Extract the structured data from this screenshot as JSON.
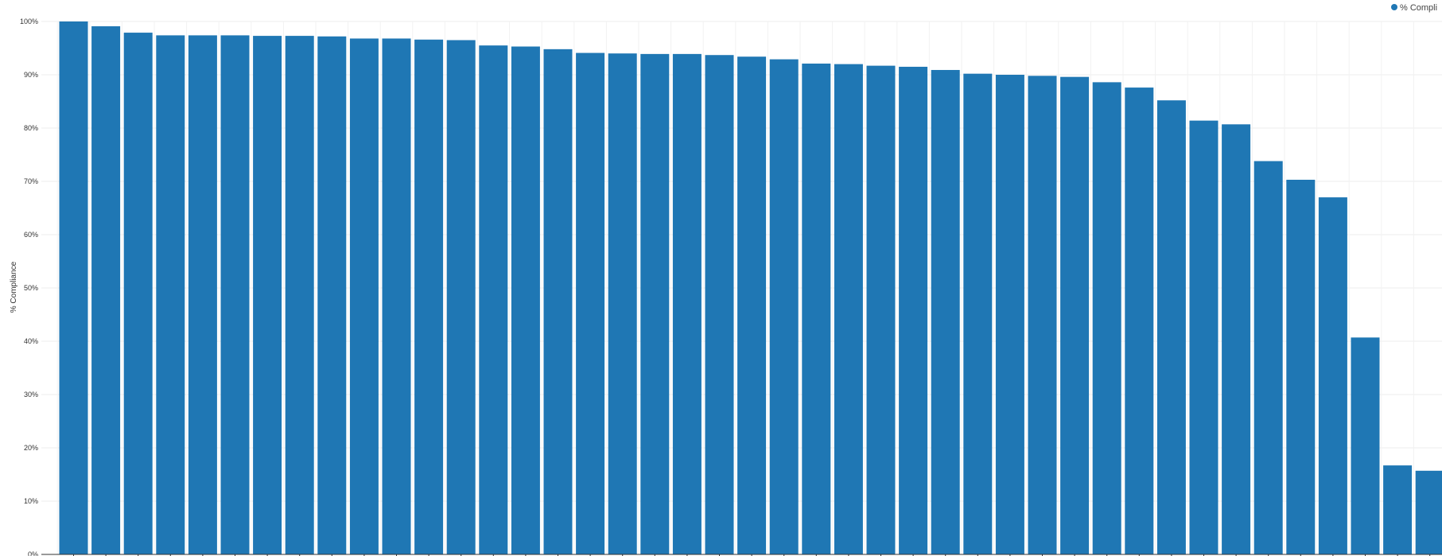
{
  "chart_data": {
    "type": "bar",
    "ylabel": "% Compliance",
    "ylim": [
      0,
      100
    ],
    "yticks": [
      "0%",
      "10%",
      "20%",
      "30%",
      "40%",
      "50%",
      "60%",
      "70%",
      "80%",
      "90%",
      "100%"
    ],
    "grid": true,
    "legend": {
      "placement": "top-right",
      "label": "% Compli"
    },
    "series": [
      {
        "color": "#1f77b4",
        "values": [
          100,
          99.1,
          97.9,
          97.4,
          97.4,
          97.4,
          97.3,
          97.3,
          97.2,
          96.8,
          96.8,
          96.6,
          96.5,
          95.5,
          95.3,
          94.8,
          94.1,
          94.0,
          93.9,
          93.9,
          93.7,
          93.4,
          92.9,
          92.1,
          92.0,
          91.7,
          91.5,
          90.9,
          90.2,
          90.0,
          89.8,
          89.6,
          88.6,
          87.6,
          85.2,
          81.4,
          80.7,
          73.8,
          70.3,
          67.0,
          40.7,
          16.7,
          15.7
        ]
      }
    ]
  }
}
